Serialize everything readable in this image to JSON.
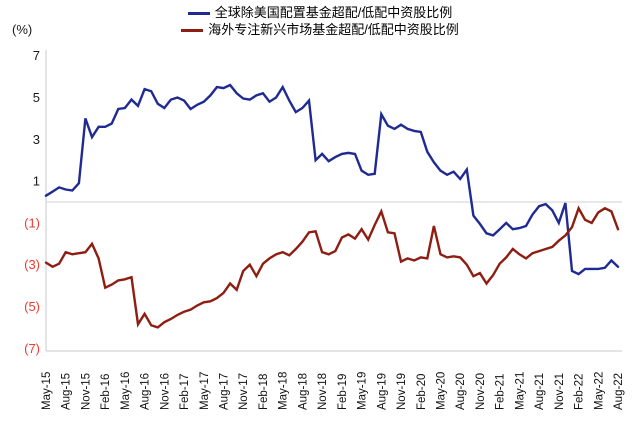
{
  "unit_label": "(%)",
  "legend": {
    "items": [
      {
        "label": "全球除美国配置基金超配/低配中资股比例",
        "color": "#1f2a93"
      },
      {
        "label": "海外专注新兴市场基金超配/低配中资股比例",
        "color": "#8e1d12"
      }
    ]
  },
  "colors": {
    "blue_series": "#1f2a93",
    "red_series": "#8e1d12",
    "negative_tick": "#f03a30",
    "positive_tick": "#1a1a1a",
    "gridline": "#d9d9d9",
    "axis": "#c9c9c9"
  },
  "chart_data": {
    "type": "line",
    "title": "",
    "xlabel": "",
    "ylabel": "(%)",
    "ylim": [
      -7,
      7
    ],
    "yticks": [
      7,
      5,
      3,
      1,
      -1,
      -3,
      -5,
      -7
    ],
    "ytick_display": [
      "7",
      "5",
      "3",
      "1",
      "(1)",
      "(3)",
      "(5)",
      "(7)"
    ],
    "grid": "zero-line-only",
    "legend_position": "top-center",
    "x_frequency": "monthly from May-2015 to Aug-2022, quarterly tick labels",
    "x_tick_labels": [
      "May-15",
      "Aug-15",
      "Nov-15",
      "Feb-16",
      "May-16",
      "Aug-16",
      "Nov-16",
      "Feb-17",
      "May-17",
      "Aug-17",
      "Nov-17",
      "Feb-18",
      "May-18",
      "Aug-18",
      "Nov-18",
      "Feb-19",
      "May-19",
      "Aug-19",
      "Nov-19",
      "Feb-20",
      "May-20",
      "Aug-20",
      "Nov-20",
      "Feb-21",
      "May-21",
      "Aug-21",
      "Nov-21",
      "Feb-22",
      "May-22",
      "Aug-22"
    ],
    "points_per_tick": 3,
    "series": [
      {
        "name": "全球除美国配置基金超配/低配中资股比例",
        "color": "#1f2a93",
        "values": [
          0.3,
          0.5,
          0.7,
          0.6,
          0.55,
          0.9,
          4.0,
          3.1,
          3.6,
          3.6,
          3.75,
          4.45,
          4.5,
          4.9,
          4.6,
          5.4,
          5.3,
          4.7,
          4.5,
          4.9,
          5.0,
          4.85,
          4.45,
          4.65,
          4.8,
          5.1,
          5.5,
          5.45,
          5.6,
          5.2,
          4.95,
          4.9,
          5.1,
          5.2,
          4.8,
          5.0,
          5.5,
          4.85,
          4.3,
          4.5,
          4.85,
          2.0,
          2.3,
          1.95,
          2.15,
          2.3,
          2.35,
          2.3,
          1.5,
          1.3,
          1.35,
          4.2,
          3.65,
          3.5,
          3.7,
          3.5,
          3.4,
          3.35,
          2.4,
          1.9,
          1.5,
          1.3,
          1.45,
          1.1,
          1.55,
          -0.65,
          -1.05,
          -1.5,
          -1.6,
          -1.3,
          -1.0,
          -1.3,
          -1.25,
          -1.15,
          -0.6,
          -0.2,
          -0.1,
          -0.4,
          -1.0,
          -0.05,
          -3.3,
          -3.45,
          -3.2,
          -3.2,
          -3.2,
          -3.15,
          -2.8,
          -3.1
        ]
      },
      {
        "name": "海外专注新兴市场基金超配/低配中资股比例",
        "color": "#8e1d12",
        "values": [
          -2.9,
          -3.1,
          -2.95,
          -2.4,
          -2.5,
          -2.45,
          -2.4,
          -2.0,
          -2.7,
          -4.1,
          -3.95,
          -3.75,
          -3.7,
          -3.6,
          -5.85,
          -5.35,
          -5.9,
          -6.0,
          -5.75,
          -5.6,
          -5.4,
          -5.25,
          -5.15,
          -4.95,
          -4.8,
          -4.75,
          -4.6,
          -4.35,
          -3.9,
          -4.2,
          -3.3,
          -3.0,
          -3.55,
          -2.95,
          -2.7,
          -2.5,
          -2.4,
          -2.55,
          -2.25,
          -1.9,
          -1.45,
          -1.4,
          -2.4,
          -2.5,
          -2.35,
          -1.7,
          -1.55,
          -1.75,
          -1.3,
          -1.8,
          -1.1,
          -0.45,
          -1.45,
          -1.5,
          -2.85,
          -2.7,
          -2.8,
          -2.65,
          -2.7,
          -1.15,
          -2.5,
          -2.65,
          -2.6,
          -2.65,
          -3.0,
          -3.55,
          -3.4,
          -3.9,
          -3.5,
          -2.95,
          -2.65,
          -2.25,
          -2.5,
          -2.7,
          -2.45,
          -2.35,
          -2.25,
          -2.15,
          -1.85,
          -1.6,
          -1.2,
          -0.3,
          -0.85,
          -1.0,
          -0.5,
          -0.3,
          -0.45,
          -1.3
        ]
      }
    ]
  }
}
